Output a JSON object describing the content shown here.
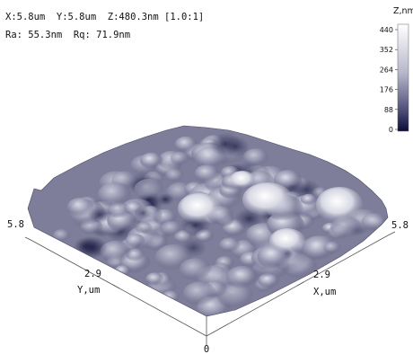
{
  "header": {
    "line1": "X:5.8um  Y:5.8um  Z:480.3nm [1.0:1]",
    "line2": "Ra: 55.3nm  Rq: 71.9nm"
  },
  "chart_data": {
    "type": "surface3d",
    "title": "",
    "x_axis": {
      "label": "X,um",
      "ticks": [
        "0",
        "2.9",
        "5.8"
      ],
      "range": [
        0,
        5.8
      ]
    },
    "y_axis": {
      "label": "Y,um",
      "ticks": [
        "0",
        "2.9",
        "5.8"
      ],
      "range": [
        0,
        5.8
      ]
    },
    "z_axis": {
      "label": "Z,nm",
      "range": [
        0,
        480.3
      ]
    },
    "colorbar": {
      "title": "Z,nm",
      "ticks": [
        "440",
        "352",
        "264",
        "176",
        "88",
        "0"
      ],
      "colors": [
        "#ffffff",
        "#0b0b3a"
      ]
    },
    "stats": {
      "Ra": "55.3nm",
      "Rq": "71.9nm",
      "scan_x": "5.8um",
      "scan_y": "5.8um",
      "z_range": "480.3nm"
    }
  }
}
